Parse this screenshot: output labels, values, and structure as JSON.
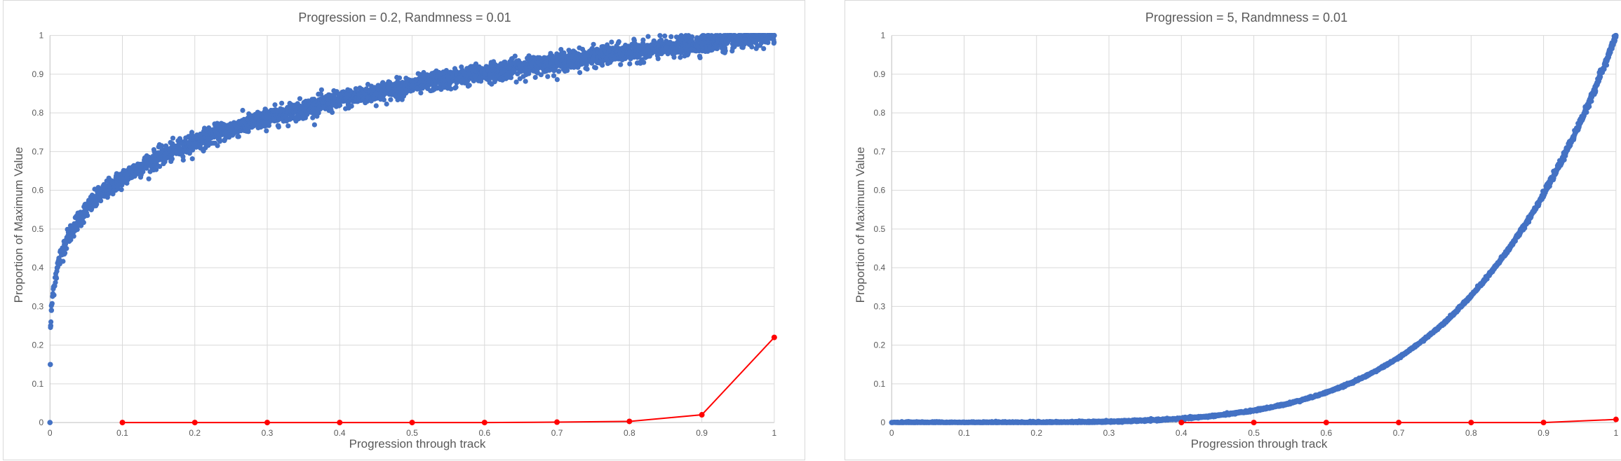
{
  "chart_data": [
    {
      "type": "scatter",
      "title": "Progression = 0.2, Randmness = 0.01",
      "xlabel": "Progression through track",
      "ylabel": "Proportion of Maximum Value",
      "xlim": [
        0,
        1
      ],
      "ylim": [
        0,
        1
      ],
      "x_ticks": [
        "0",
        "0.1",
        "0.2",
        "0.3",
        "0.4",
        "0.5",
        "0.6",
        "0.7",
        "0.8",
        "0.9",
        "1"
      ],
      "y_ticks": [
        "0",
        "0.1",
        "0.2",
        "0.3",
        "0.4",
        "0.5",
        "0.6",
        "0.7",
        "0.8",
        "0.9",
        "1"
      ],
      "grid": true,
      "legend": "none",
      "series": [
        {
          "color": "#4472c4",
          "mode": "markers",
          "curve": "y = x^0.2 with random noise",
          "exponent": 0.2,
          "randomness": 0.01,
          "x": [
            0,
            0.0005,
            0.001,
            0.002,
            0.005,
            0.01,
            0.02,
            0.03,
            0.05,
            0.07,
            0.1,
            0.15,
            0.2,
            0.25,
            0.3,
            0.35,
            0.4,
            0.45,
            0.5,
            0.55,
            0.6,
            0.65,
            0.7,
            0.75,
            0.8,
            0.85,
            0.9,
            0.95,
            1
          ],
          "y": [
            0,
            0.15,
            0.25,
            0.29,
            0.35,
            0.4,
            0.46,
            0.5,
            0.55,
            0.59,
            0.63,
            0.68,
            0.72,
            0.76,
            0.79,
            0.81,
            0.83,
            0.85,
            0.87,
            0.89,
            0.9,
            0.92,
            0.93,
            0.94,
            0.955,
            0.967,
            0.98,
            0.99,
            1.0
          ]
        },
        {
          "color": "#ff0000",
          "mode": "lines+markers",
          "x": [
            0.1,
            0.2,
            0.3,
            0.4,
            0.5,
            0.6,
            0.7,
            0.8,
            0.9,
            1
          ],
          "y": [
            0,
            0,
            0,
            0,
            0,
            0,
            0.001,
            0.003,
            0.02,
            0.22
          ]
        }
      ]
    },
    {
      "type": "scatter",
      "title": "Progression = 5, Randmness = 0.01",
      "xlabel": "Progression through track",
      "ylabel": "Proportion of Maximum Value",
      "xlim": [
        0,
        1
      ],
      "ylim": [
        0,
        1
      ],
      "x_ticks": [
        "0",
        "0.1",
        "0.2",
        "0.3",
        "0.4",
        "0.5",
        "0.6",
        "0.7",
        "0.8",
        "0.9",
        "1"
      ],
      "y_ticks": [
        "0",
        "0.1",
        "0.2",
        "0.3",
        "0.4",
        "0.5",
        "0.6",
        "0.7",
        "0.8",
        "0.9",
        "1"
      ],
      "grid": true,
      "legend": "none",
      "series": [
        {
          "color": "#4472c4",
          "mode": "markers",
          "curve": "y = x^5 with random noise",
          "exponent": 5,
          "randomness": 0.01,
          "x": [
            0,
            0.1,
            0.2,
            0.3,
            0.4,
            0.5,
            0.55,
            0.6,
            0.65,
            0.7,
            0.75,
            0.8,
            0.85,
            0.9,
            0.95,
            1
          ],
          "y": [
            0,
            0,
            0,
            0.002,
            0.01,
            0.031,
            0.05,
            0.078,
            0.116,
            0.168,
            0.237,
            0.328,
            0.444,
            0.59,
            0.774,
            1.0
          ]
        },
        {
          "color": "#ff0000",
          "mode": "lines+markers",
          "x": [
            0.4,
            0.5,
            0.6,
            0.7,
            0.8,
            0.9,
            1
          ],
          "y": [
            0,
            0,
            0,
            0,
            0,
            0,
            0.008
          ]
        }
      ]
    }
  ]
}
